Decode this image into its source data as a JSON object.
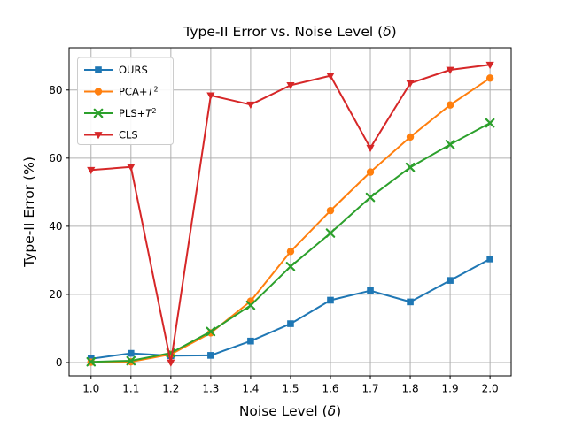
{
  "figure": {
    "background": "#ffffff",
    "axes_background": "#ffffff",
    "border_color": "#000000",
    "grid_color": "#b0b0b0"
  },
  "chart_data": {
    "type": "line",
    "title": "Type-II Error vs. Noise Level (δ)",
    "xlabel": "Noise Level (δ)",
    "ylabel": "Type-II Error (%)",
    "grid": true,
    "legend_position": "upper-left",
    "x": [
      1.0,
      1.1,
      1.2,
      1.3,
      1.4,
      1.5,
      1.6,
      1.7,
      1.8,
      1.9,
      2.0
    ],
    "x_tick_labels": [
      "1.0",
      "1.1",
      "1.2",
      "1.3",
      "1.4",
      "1.5",
      "1.6",
      "1.7",
      "1.8",
      "1.9",
      "2.0"
    ],
    "y_ticks": [
      0,
      20,
      40,
      60,
      80
    ],
    "y_tick_labels": [
      "0",
      "20",
      "40",
      "60",
      "80"
    ],
    "xlim": [
      0.945,
      2.053
    ],
    "ylim": [
      -3.9,
      92.4
    ],
    "series": [
      {
        "name": "OURS",
        "color": "#1f77b4",
        "marker": "square",
        "values": [
          1.1,
          2.7,
          2.0,
          2.1,
          6.3,
          11.4,
          18.3,
          21.1,
          17.8,
          24.1,
          30.4
        ]
      },
      {
        "name": "PCA+T²",
        "color": "#ff7f0e",
        "marker": "circle",
        "values": [
          0.1,
          0.2,
          2.4,
          8.7,
          18.0,
          32.6,
          44.6,
          55.9,
          66.2,
          75.6,
          83.5
        ]
      },
      {
        "name": "PLS+T²",
        "color": "#2ca02c",
        "marker": "x",
        "values": [
          0.2,
          0.5,
          2.8,
          9.1,
          16.8,
          28.2,
          38.0,
          48.5,
          57.3,
          64.0,
          70.3
        ]
      },
      {
        "name": "CLS",
        "color": "#d62728",
        "marker": "triangle-down",
        "values": [
          56.5,
          57.4,
          0.0,
          78.4,
          75.7,
          81.4,
          84.2,
          63.0,
          82.0,
          85.9,
          87.4
        ]
      }
    ]
  }
}
